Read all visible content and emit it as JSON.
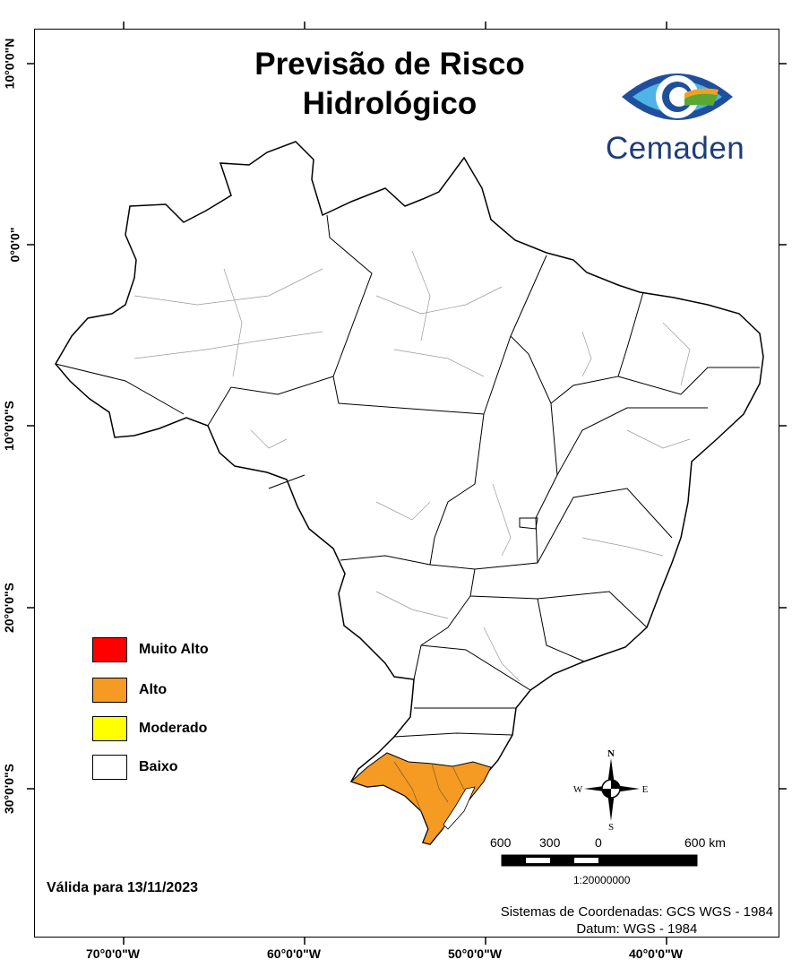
{
  "title": {
    "line1": "Previsão de Risco",
    "line2": "Hidrológico"
  },
  "logo": {
    "name": "Cemaden"
  },
  "latitude_labels": [
    "10°0'0\"N",
    "0°0'0\"",
    "10°0'0\"S",
    "20°0'0\"S",
    "30°0'0\"S"
  ],
  "longitude_labels": [
    "70°0'0\"W",
    "60°0'0\"W",
    "50°0'0\"W",
    "40°0'0\"W"
  ],
  "legend": [
    {
      "label": "Muito Alto",
      "color": "#ff0000"
    },
    {
      "label": "Alto",
      "color": "#f59a23"
    },
    {
      "label": "Moderado",
      "color": "#ffff00"
    },
    {
      "label": "Baixo",
      "color": "#ffffff"
    }
  ],
  "risk_by_region": {
    "Rio Grande do Sul": "Alto",
    "others": "Baixo"
  },
  "validity": "Válida para 13/11/2023",
  "compass": {
    "n": "N",
    "s": "S",
    "e": "E",
    "w": "W"
  },
  "scale_bar": {
    "labels": [
      "600",
      "300",
      "0",
      "600 km"
    ],
    "ratio": "1:20000000"
  },
  "crs": {
    "line1": "Sistemas de Coordenadas: GCS WGS - 1984",
    "line2": "Datum: WGS - 1984"
  }
}
